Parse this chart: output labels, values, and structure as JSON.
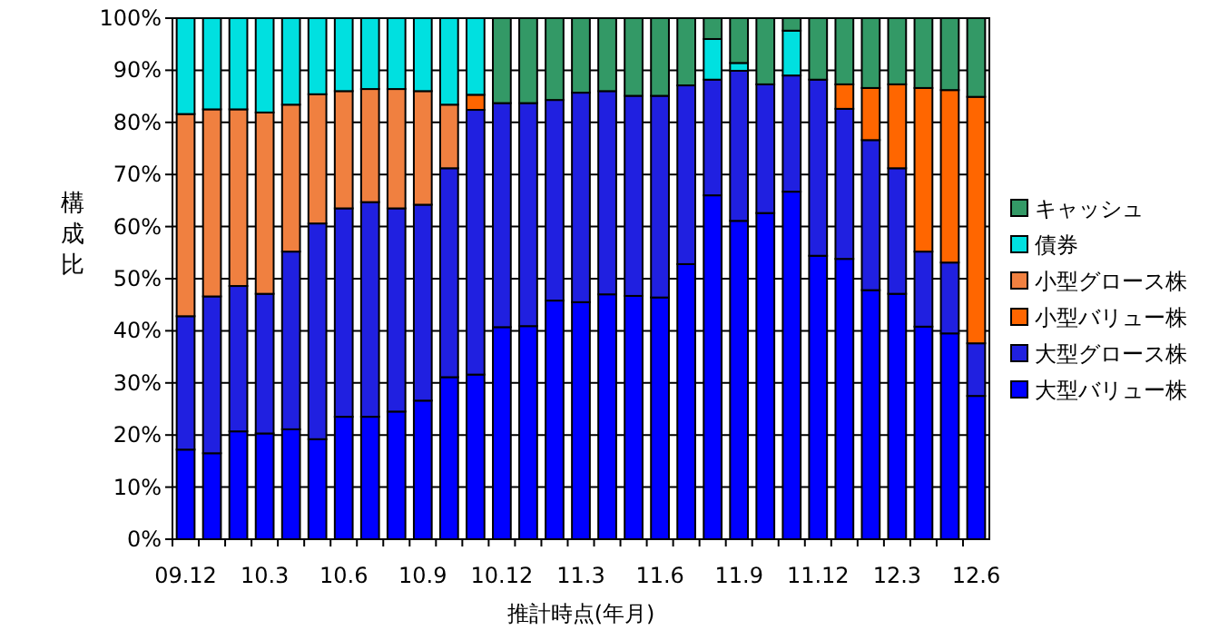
{
  "chart_data": {
    "type": "bar",
    "stacked": true,
    "xlabel": "推計時点(年月)",
    "ylabel": "構成比",
    "categories": [
      "09.12",
      null,
      null,
      "10.3",
      null,
      null,
      "10.6",
      null,
      null,
      "10.9",
      null,
      null,
      "10.12",
      null,
      null,
      "11.3",
      null,
      null,
      "11.6",
      null,
      null,
      "11.9",
      null,
      null,
      "11.12",
      null,
      null,
      "12.3",
      null,
      null,
      "12.6"
    ],
    "ylim": [
      0,
      100
    ],
    "yticks": [
      {
        "value": 0,
        "label": "0%"
      },
      {
        "value": 10,
        "label": "10%"
      },
      {
        "value": 20,
        "label": "20%"
      },
      {
        "value": 30,
        "label": "30%"
      },
      {
        "value": 40,
        "label": "40%"
      },
      {
        "value": 50,
        "label": "50%"
      },
      {
        "value": 60,
        "label": "60%"
      },
      {
        "value": 70,
        "label": "70%"
      },
      {
        "value": 80,
        "label": "80%"
      },
      {
        "value": 90,
        "label": "90%"
      },
      {
        "value": 100,
        "label": "100%"
      }
    ],
    "grid": "y",
    "legend": "right",
    "series": [
      {
        "name": "大型バリュー株",
        "color": "#0000ff",
        "values": [
          17.2,
          16.5,
          20.7,
          20.3,
          21.1,
          19.2,
          23.5,
          23.5,
          24.5,
          26.6,
          31.1,
          31.6,
          40.7,
          40.9,
          45.8,
          45.5,
          47.0,
          46.7,
          46.4,
          52.8,
          66.0,
          61.1,
          62.6,
          66.7,
          54.4,
          53.8,
          47.8,
          47.1,
          40.8,
          39.5,
          27.5
        ]
      },
      {
        "name": "大型グロース株",
        "color": "#2020e0",
        "values": [
          25.6,
          30.1,
          27.9,
          26.8,
          34.1,
          41.4,
          40.0,
          41.2,
          39.0,
          37.6,
          40.1,
          50.8,
          43.0,
          42.8,
          38.5,
          40.2,
          39.0,
          38.4,
          38.7,
          34.3,
          22.2,
          28.8,
          24.7,
          22.3,
          33.8,
          28.8,
          28.8,
          24.1,
          14.4,
          13.6,
          10.1
        ]
      },
      {
        "name": "小型バリュー株",
        "color": "#ff6600",
        "values": [
          null,
          null,
          null,
          null,
          null,
          null,
          null,
          null,
          null,
          null,
          null,
          2.9,
          null,
          null,
          null,
          null,
          null,
          null,
          null,
          null,
          null,
          null,
          null,
          null,
          null,
          4.7,
          10.0,
          16.1,
          31.4,
          33.1,
          47.3
        ]
      },
      {
        "name": "小型グロース株",
        "color": "#f08040",
        "values": [
          38.8,
          35.9,
          33.9,
          34.8,
          28.2,
          24.8,
          22.5,
          21.7,
          22.9,
          21.8,
          12.2,
          null,
          null,
          null,
          null,
          null,
          null,
          null,
          null,
          null,
          null,
          null,
          null,
          null,
          null,
          null,
          null,
          null,
          null,
          null,
          null
        ]
      },
      {
        "name": "債券",
        "color": "#00e0e0",
        "values": [
          18.4,
          17.5,
          17.5,
          18.1,
          16.6,
          14.6,
          14.0,
          13.6,
          13.6,
          14.0,
          16.6,
          14.7,
          null,
          null,
          null,
          null,
          null,
          null,
          null,
          null,
          7.8,
          1.5,
          null,
          8.6,
          null,
          null,
          null,
          null,
          null,
          null,
          null
        ]
      },
      {
        "name": "キャッシュ",
        "color": "#339966",
        "values": [
          null,
          null,
          null,
          null,
          null,
          null,
          null,
          null,
          null,
          null,
          null,
          null,
          16.3,
          16.3,
          15.7,
          14.3,
          14.0,
          14.9,
          14.9,
          12.9,
          4.0,
          8.6,
          12.7,
          2.4,
          11.8,
          12.7,
          13.4,
          12.7,
          13.4,
          13.8,
          15.1
        ]
      }
    ]
  }
}
